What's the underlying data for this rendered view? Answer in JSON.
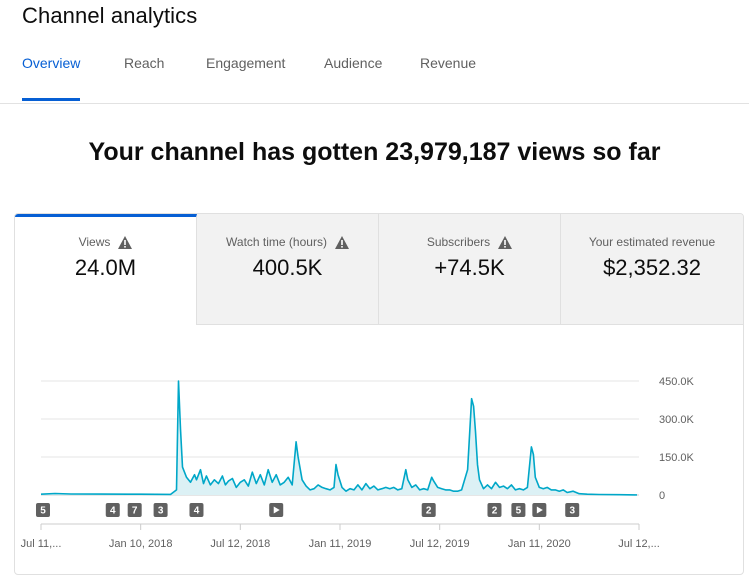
{
  "page": {
    "title": "Channel analytics",
    "tabs": [
      "Overview",
      "Reach",
      "Engagement",
      "Audience",
      "Revenue"
    ],
    "active_tab": "Overview",
    "headline": "Your channel has gotten 23,979,187 views so far"
  },
  "metrics": [
    {
      "label": "Views",
      "value": "24.0M",
      "warning": true,
      "active": true
    },
    {
      "label": "Watch time (hours)",
      "value": "400.5K",
      "warning": true,
      "active": false
    },
    {
      "label": "Subscribers",
      "value": "+74.5K",
      "warning": true,
      "active": false
    },
    {
      "label": "Your estimated revenue",
      "value": "$2,352.32",
      "warning": false,
      "active": false
    }
  ],
  "colors": {
    "accent": "#065fd4",
    "line": "#00a7c8",
    "fill": "#dcf1f5",
    "badge": "#606060"
  },
  "chart_data": {
    "type": "area",
    "series": [
      {
        "values": [
          [
            0,
            3000
          ],
          [
            14,
            6000
          ],
          [
            30,
            4000
          ],
          [
            60,
            3500
          ],
          [
            100,
            3000
          ],
          [
            130,
            2500
          ],
          [
            136,
            20000
          ],
          [
            138,
            450000
          ],
          [
            140,
            260000
          ],
          [
            142,
            110000
          ],
          [
            146,
            70000
          ],
          [
            150,
            50000
          ],
          [
            154,
            80000
          ],
          [
            156,
            60000
          ],
          [
            160,
            100000
          ],
          [
            163,
            45000
          ],
          [
            166,
            75000
          ],
          [
            170,
            40000
          ],
          [
            174,
            60000
          ],
          [
            178,
            45000
          ],
          [
            182,
            75000
          ],
          [
            185,
            40000
          ],
          [
            188,
            55000
          ],
          [
            192,
            65000
          ],
          [
            196,
            30000
          ],
          [
            200,
            50000
          ],
          [
            204,
            60000
          ],
          [
            208,
            35000
          ],
          [
            212,
            90000
          ],
          [
            216,
            45000
          ],
          [
            220,
            80000
          ],
          [
            224,
            40000
          ],
          [
            228,
            100000
          ],
          [
            232,
            50000
          ],
          [
            236,
            80000
          ],
          [
            240,
            40000
          ],
          [
            244,
            50000
          ],
          [
            248,
            70000
          ],
          [
            252,
            40000
          ],
          [
            256,
            210000
          ],
          [
            258,
            150000
          ],
          [
            262,
            60000
          ],
          [
            266,
            35000
          ],
          [
            270,
            20000
          ],
          [
            274,
            25000
          ],
          [
            278,
            40000
          ],
          [
            282,
            30000
          ],
          [
            286,
            25000
          ],
          [
            290,
            20000
          ],
          [
            294,
            30000
          ],
          [
            296,
            120000
          ],
          [
            298,
            80000
          ],
          [
            302,
            30000
          ],
          [
            306,
            15000
          ],
          [
            310,
            25000
          ],
          [
            314,
            20000
          ],
          [
            318,
            40000
          ],
          [
            322,
            20000
          ],
          [
            326,
            45000
          ],
          [
            330,
            25000
          ],
          [
            334,
            35000
          ],
          [
            338,
            20000
          ],
          [
            342,
            25000
          ],
          [
            346,
            30000
          ],
          [
            350,
            25000
          ],
          [
            354,
            30000
          ],
          [
            358,
            20000
          ],
          [
            362,
            25000
          ],
          [
            366,
            100000
          ],
          [
            368,
            60000
          ],
          [
            372,
            30000
          ],
          [
            376,
            40000
          ],
          [
            380,
            20000
          ],
          [
            384,
            25000
          ],
          [
            388,
            20000
          ],
          [
            392,
            70000
          ],
          [
            394,
            55000
          ],
          [
            398,
            30000
          ],
          [
            402,
            25000
          ],
          [
            406,
            20000
          ],
          [
            410,
            20000
          ],
          [
            414,
            15000
          ],
          [
            418,
            15000
          ],
          [
            422,
            20000
          ],
          [
            428,
            100000
          ],
          [
            432,
            380000
          ],
          [
            434,
            350000
          ],
          [
            436,
            250000
          ],
          [
            438,
            120000
          ],
          [
            440,
            60000
          ],
          [
            444,
            25000
          ],
          [
            448,
            40000
          ],
          [
            452,
            25000
          ],
          [
            456,
            50000
          ],
          [
            460,
            30000
          ],
          [
            464,
            35000
          ],
          [
            468,
            25000
          ],
          [
            472,
            40000
          ],
          [
            476,
            20000
          ],
          [
            480,
            25000
          ],
          [
            484,
            20000
          ],
          [
            488,
            30000
          ],
          [
            492,
            190000
          ],
          [
            494,
            160000
          ],
          [
            496,
            70000
          ],
          [
            500,
            30000
          ],
          [
            504,
            25000
          ],
          [
            508,
            30000
          ],
          [
            512,
            20000
          ],
          [
            516,
            20000
          ],
          [
            520,
            15000
          ],
          [
            524,
            20000
          ],
          [
            528,
            10000
          ],
          [
            534,
            15000
          ],
          [
            540,
            5000
          ],
          [
            548,
            3000
          ],
          [
            560,
            2000
          ],
          [
            580,
            1000
          ],
          [
            598,
            500
          ]
        ]
      }
    ],
    "y_ticks": [
      "450.0K",
      "300.0K",
      "150.0K",
      "0"
    ],
    "y_tick_values": [
      450000,
      300000,
      150000,
      0
    ],
    "ylim": [
      0,
      450000
    ],
    "x_ticks": [
      "Jul 11,...",
      "Jan 10, 2018",
      "Jul 12, 2018",
      "Jan 11, 2019",
      "Jul 12, 2019",
      "Jan 11, 2020",
      "Jul 12,..."
    ],
    "x_tick_positions": [
      0,
      100,
      200,
      300,
      400,
      500,
      600
    ],
    "xlim": [
      0,
      600
    ],
    "markers": [
      {
        "label": "5",
        "x": 2
      },
      {
        "label": "4",
        "x": 72
      },
      {
        "label": "7",
        "x": 94
      },
      {
        "label": "3",
        "x": 120
      },
      {
        "label": "4",
        "x": 156
      },
      {
        "label": "▶",
        "x": 236
      },
      {
        "label": "2",
        "x": 389
      },
      {
        "label": "2",
        "x": 455
      },
      {
        "label": "5",
        "x": 479
      },
      {
        "label": "▶",
        "x": 500
      },
      {
        "label": "3",
        "x": 533
      }
    ]
  }
}
